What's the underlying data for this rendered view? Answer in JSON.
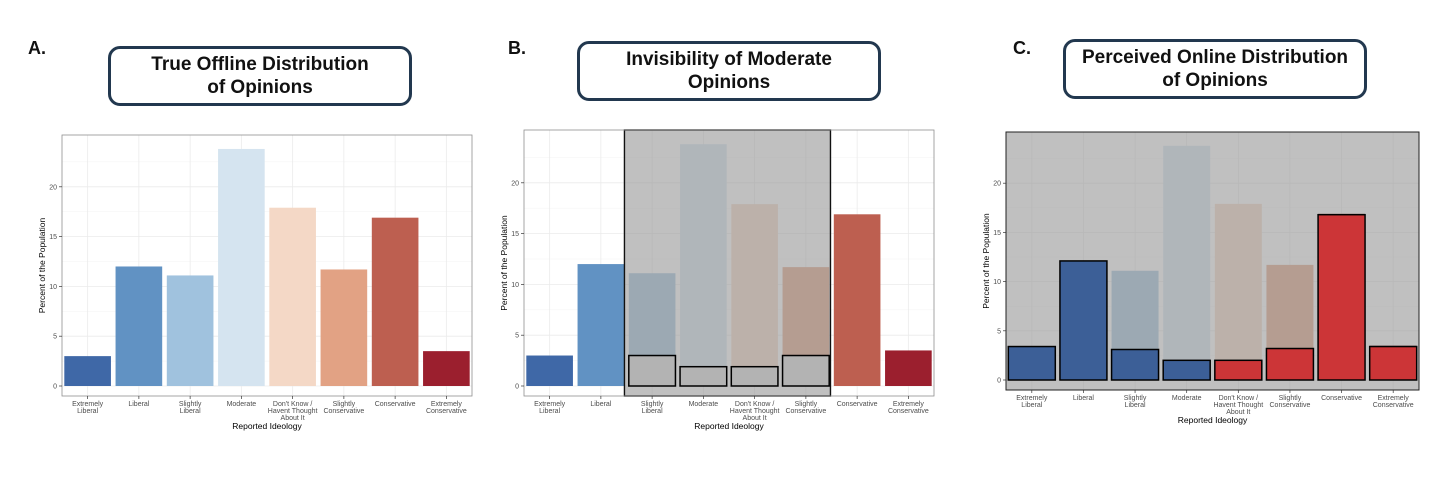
{
  "panels": [
    {
      "letter": "A.",
      "title": "True Offline Distribution\nof Opinions"
    },
    {
      "letter": "B.",
      "title": "Invisibility of Moderate\nOpinions"
    },
    {
      "letter": "C.",
      "title": "Perceived Online Distribution\nof Opinions"
    }
  ],
  "colors": {
    "extremely_liberal": "#3f68a7",
    "liberal": "#6192c3",
    "slightly_liberal": "#a0c2de",
    "moderate": "#d5e4f0",
    "dont_know": "#f4d8c6",
    "slightly_conservative": "#e2a284",
    "conservative": "#bd5f50",
    "extremely_conservative": "#9b1f2e",
    "online_blue": "#3c5f97",
    "online_red": "#cc3537",
    "overlay": "#999999"
  },
  "chart_data": [
    {
      "type": "bar",
      "panel": "A",
      "categories": [
        "Extremely\nLiberal",
        "Liberal",
        "Slightly\nLiberal",
        "Moderate",
        "Don't Know /\nHavent Thought\nAbout It",
        "Slightly\nConservative",
        "Conservative",
        "Extremely\nConservative"
      ],
      "values": [
        3,
        12,
        11.1,
        23.8,
        17.9,
        11.7,
        16.9,
        3.5
      ],
      "xlabel": "Reported Ideology",
      "ylabel": "Percent of the Population",
      "ylim": [
        0,
        25
      ],
      "yticks": [
        0,
        5,
        10,
        15,
        20
      ],
      "grid": true
    },
    {
      "type": "bar",
      "panel": "B",
      "categories": [
        "Extremely\nLiberal",
        "Liberal",
        "Slightly\nLiberal",
        "Moderate",
        "Don't Know /\nHavent Thought\nAbout It",
        "Slightly\nConservative",
        "Conservative",
        "Extremely\nConservative"
      ],
      "series": [
        {
          "values": [
            3,
            12,
            11.1,
            23.8,
            17.9,
            11.7,
            16.9,
            3.5
          ]
        },
        {
          "values": [
            null,
            null,
            3,
            1.9,
            1.9,
            3,
            null,
            null
          ]
        }
      ],
      "shaded_categories": [
        "Slightly\nLiberal",
        "Moderate",
        "Don't Know /\nHavent Thought\nAbout It",
        "Slightly\nConservative"
      ],
      "xlabel": "Reported Ideology",
      "ylabel": "Percent of the Population",
      "ylim": [
        0,
        25
      ],
      "yticks": [
        0,
        5,
        10,
        15,
        20
      ],
      "grid": true
    },
    {
      "type": "bar",
      "panel": "C",
      "categories": [
        "Extremely\nLiberal",
        "Liberal",
        "Slightly\nLiberal",
        "Moderate",
        "Don't Know /\nHavent Thought\nAbout It",
        "Slightly\nConservative",
        "Conservative",
        "Extremely\nConservative"
      ],
      "series": [
        {
          "values": [
            3,
            12,
            11.1,
            23.8,
            17.9,
            11.7,
            16.9,
            3.5
          ]
        },
        {
          "values": [
            3.4,
            12.1,
            3.1,
            2,
            2,
            3.2,
            16.8,
            3.4
          ]
        }
      ],
      "shaded_categories": "all",
      "xlabel": "Reported Ideology",
      "ylabel": "Percent of the Population",
      "ylim": [
        0,
        25
      ],
      "yticks": [
        0,
        5,
        10,
        15,
        20
      ],
      "grid": true
    }
  ]
}
